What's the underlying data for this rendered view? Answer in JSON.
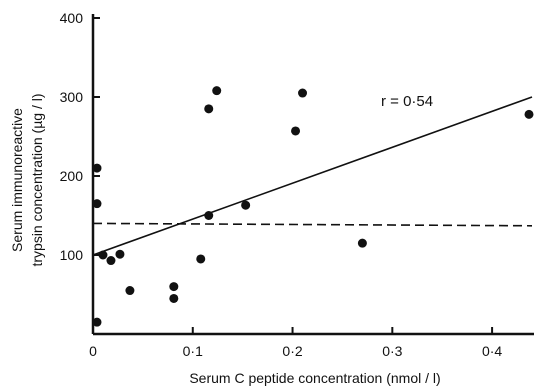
{
  "chart_data": {
    "type": "scatter",
    "title": "",
    "xlabel": "Serum C peptide concentration (nmol / l)",
    "ylabel_line1": "Serum immunoreactive",
    "ylabel_line2": "trypsin concentration (µg / l)",
    "xlim": [
      0,
      0.44
    ],
    "ylim": [
      0,
      400
    ],
    "x_ticks": [
      {
        "value": 0,
        "label": "0"
      },
      {
        "value": 0.1,
        "label": "0·1"
      },
      {
        "value": 0.2,
        "label": "0·2"
      },
      {
        "value": 0.3,
        "label": "0·3"
      },
      {
        "value": 0.4,
        "label": "0·4"
      }
    ],
    "y_ticks": [
      {
        "value": 100,
        "label": "100"
      },
      {
        "value": 200,
        "label": "200"
      },
      {
        "value": 300,
        "label": "300"
      },
      {
        "value": 400,
        "label": "400"
      }
    ],
    "points": [
      {
        "x": 0.004,
        "y": 210
      },
      {
        "x": 0.004,
        "y": 165
      },
      {
        "x": 0.004,
        "y": 15
      },
      {
        "x": 0.01,
        "y": 100
      },
      {
        "x": 0.018,
        "y": 93
      },
      {
        "x": 0.027,
        "y": 101
      },
      {
        "x": 0.037,
        "y": 55
      },
      {
        "x": 0.081,
        "y": 60
      },
      {
        "x": 0.081,
        "y": 45
      },
      {
        "x": 0.108,
        "y": 95
      },
      {
        "x": 0.116,
        "y": 285
      },
      {
        "x": 0.124,
        "y": 308
      },
      {
        "x": 0.116,
        "y": 150
      },
      {
        "x": 0.153,
        "y": 163
      },
      {
        "x": 0.203,
        "y": 257
      },
      {
        "x": 0.21,
        "y": 305
      },
      {
        "x": 0.27,
        "y": 115
      },
      {
        "x": 0.44,
        "y": 278
      }
    ],
    "regression_line": {
      "x": [
        0,
        0.44
      ],
      "y": [
        100,
        300
      ]
    },
    "reference_line": {
      "y_start": 140,
      "y_end": 137
    },
    "annotation": "r = 0·54"
  }
}
